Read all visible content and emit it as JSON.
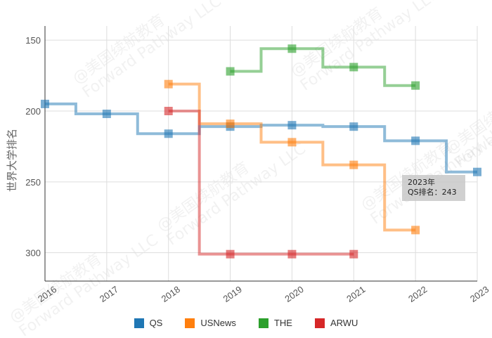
{
  "chart_data": {
    "type": "line",
    "step": true,
    "ylabel": "世界大学排名",
    "y_inverted": true,
    "ylim": [
      140,
      320
    ],
    "yticks": [
      150,
      200,
      250,
      300
    ],
    "x": [
      "2016",
      "2017",
      "2018",
      "2019",
      "2020",
      "2021",
      "2022",
      "2023"
    ],
    "grid": true,
    "legend_position": "bottom",
    "series": [
      {
        "name": "QS",
        "color": "#1f77b4",
        "values": [
          195,
          202,
          216,
          211,
          210,
          211,
          221,
          243
        ]
      },
      {
        "name": "USNews",
        "color": "#ff7f0e",
        "values": [
          null,
          null,
          181,
          209,
          222,
          238,
          284,
          null
        ]
      },
      {
        "name": "THE",
        "color": "#2ca02c",
        "values": [
          null,
          null,
          null,
          172,
          156,
          169,
          182,
          null
        ]
      },
      {
        "name": "ARWU",
        "color": "#d62728",
        "values": [
          null,
          null,
          200,
          301,
          301,
          301,
          null,
          null
        ]
      }
    ],
    "tooltip": {
      "line1": "2023年",
      "line2": "QS排名：243"
    }
  },
  "watermark": {
    "line1": "@美国续航教育",
    "line2": "Forward Pathway LLC"
  }
}
